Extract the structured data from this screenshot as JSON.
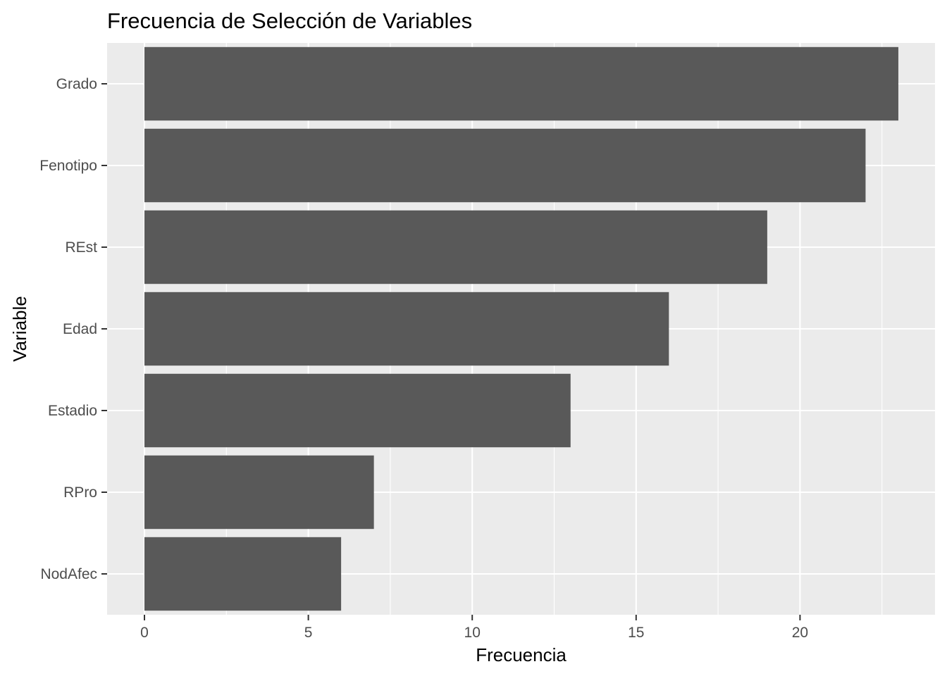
{
  "chart_data": {
    "type": "bar",
    "orientation": "horizontal",
    "title": "Frecuencia de Selección de Variables",
    "xlabel": "Frecuencia",
    "ylabel": "Variable",
    "categories": [
      "Grado",
      "Fenotipo",
      "REst",
      "Edad",
      "Estadio",
      "RPro",
      "NodAfec"
    ],
    "values": [
      23,
      22,
      19,
      16,
      13,
      7,
      6
    ],
    "xlim": [
      0,
      24.15
    ],
    "x_ticks": [
      0,
      5,
      10,
      15,
      20
    ],
    "x_tick_labels": [
      "0",
      "5",
      "10",
      "15",
      "20"
    ],
    "grid": true,
    "bar_color": "#595959",
    "panel_color": "#ebebeb",
    "gridline_color": "#ffffff"
  }
}
